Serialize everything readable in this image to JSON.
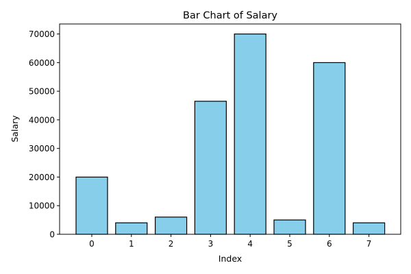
{
  "chart_data": {
    "type": "bar",
    "title": "Bar Chart of Salary",
    "xlabel": "Index",
    "ylabel": "Salary",
    "categories": [
      "0",
      "1",
      "2",
      "3",
      "4",
      "5",
      "6",
      "7"
    ],
    "values": [
      20000,
      4000,
      6000,
      46500,
      70000,
      5000,
      60000,
      4000
    ],
    "ylim": [
      0,
      73500
    ],
    "yticks": [
      0,
      10000,
      20000,
      30000,
      40000,
      50000,
      60000,
      70000
    ],
    "ytick_labels": [
      "0",
      "10000",
      "20000",
      "30000",
      "40000",
      "50000",
      "60000",
      "70000"
    ],
    "bar_color": "#87CEEB",
    "edge_color": "#000000",
    "grid": false,
    "legend": "none"
  }
}
